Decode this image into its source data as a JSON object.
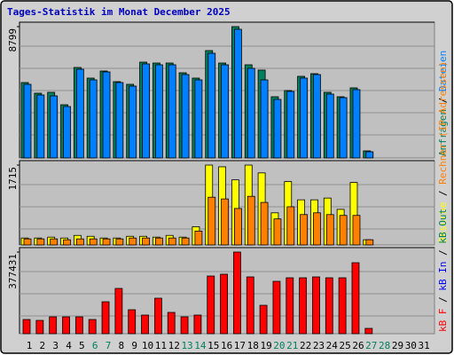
{
  "chart_data": [
    {
      "type": "bar",
      "title": "Tages-Statistik im Monat December 2025",
      "ylim": [
        0,
        8799
      ],
      "yticks": [
        8799
      ],
      "series": [
        {
          "name": "Anfragen",
          "color": "#00805c",
          "values": [
            5053,
            4340,
            4399,
            3567,
            6064,
            5351,
            5826,
            5113,
            4935,
            6421,
            6361,
            6361,
            5707,
            5351,
            7194,
            6361,
            8799,
            6243,
            5886,
            4102,
            4518,
            5470,
            5648,
            4399,
            4102,
            4697,
            476,
            null,
            null,
            null,
            null
          ]
        },
        {
          "name": "Dateien",
          "color": "#0080ff",
          "values": [
            4935,
            4221,
            4162,
            3448,
            5945,
            5232,
            5767,
            5053,
            4816,
            6302,
            6243,
            6243,
            5589,
            5232,
            7015,
            6243,
            8621,
            6005,
            5232,
            3924,
            4459,
            5351,
            5589,
            4281,
            4043,
            4578,
            416,
            null,
            null,
            null,
            null
          ]
        }
      ]
    },
    {
      "type": "bar",
      "ylim": [
        0,
        1715
      ],
      "yticks": [
        1715
      ],
      "series": [
        {
          "name": "Besuche",
          "color": "#ffff00",
          "values": [
            149,
            149,
            168,
            149,
            205,
            186,
            149,
            149,
            186,
            186,
            168,
            205,
            168,
            391,
            1715,
            1678,
            1398,
            1715,
            1547,
            690,
            1361,
            969,
            969,
            1007,
            764,
            1342,
            112,
            null,
            null,
            null,
            null
          ]
        },
        {
          "name": "Rechner (IP-Adressen)",
          "color": "#ff8000",
          "values": [
            130,
            130,
            130,
            112,
            130,
            130,
            130,
            130,
            149,
            149,
            149,
            149,
            149,
            298,
            1025,
            988,
            783,
            1044,
            913,
            559,
            820,
            652,
            690,
            652,
            634,
            634,
            112,
            null,
            null,
            null,
            null
          ]
        }
      ]
    },
    {
      "type": "bar",
      "ylim": [
        0,
        377431
      ],
      "yticks": [
        377431
      ],
      "categories": [
        "1",
        "2",
        "3",
        "4",
        "5",
        "6",
        "7",
        "8",
        "9",
        "10",
        "11",
        "12",
        "13",
        "14",
        "15",
        "16",
        "17",
        "18",
        "19",
        "20",
        "21",
        "22",
        "23",
        "24",
        "25",
        "26",
        "27",
        "28",
        "29",
        "30",
        "31"
      ],
      "category_colors": [
        "#000000",
        "#000000",
        "#000000",
        "#000000",
        "#000000",
        "#00805c",
        "#00805c",
        "#000000",
        "#000000",
        "#000000",
        "#000000",
        "#000000",
        "#00805c",
        "#00805c",
        "#000000",
        "#000000",
        "#000000",
        "#000000",
        "#000000",
        "#00805c",
        "#00805c",
        "#000000",
        "#000000",
        "#000000",
        "#000000",
        "#000000",
        "#00805c",
        "#00805c",
        "#000000",
        "#000000",
        "#000000"
      ],
      "series": [
        {
          "name": "kB F",
          "color": "#ff0000",
          "values": [
            65632,
            61530,
            77938,
            77938,
            77938,
            65632,
            147672,
            209202,
            110754,
            86142,
            164080,
            98448,
            77938,
            86142,
            266630,
            274834,
            377431,
            262528,
            131264,
            242018,
            258426,
            258426,
            262528,
            258426,
            258426,
            328160,
            24612,
            null,
            null,
            null,
            null
          ]
        },
        {
          "name": "kB In",
          "color": "#0000ff",
          "values": [
            null,
            null,
            null,
            null,
            null,
            null,
            null,
            null,
            null,
            null,
            null,
            null,
            null,
            null,
            null,
            null,
            null,
            null,
            null,
            null,
            null,
            null,
            null,
            null,
            null,
            null,
            null,
            null,
            null,
            null,
            null
          ]
        },
        {
          "name": "kB Out",
          "color": "#00805c",
          "values": [
            null,
            null,
            null,
            null,
            null,
            null,
            null,
            null,
            null,
            null,
            null,
            null,
            null,
            null,
            null,
            null,
            null,
            null,
            null,
            null,
            null,
            null,
            null,
            null,
            null,
            null,
            null,
            null,
            null,
            null,
            null
          ]
        }
      ]
    }
  ]
}
